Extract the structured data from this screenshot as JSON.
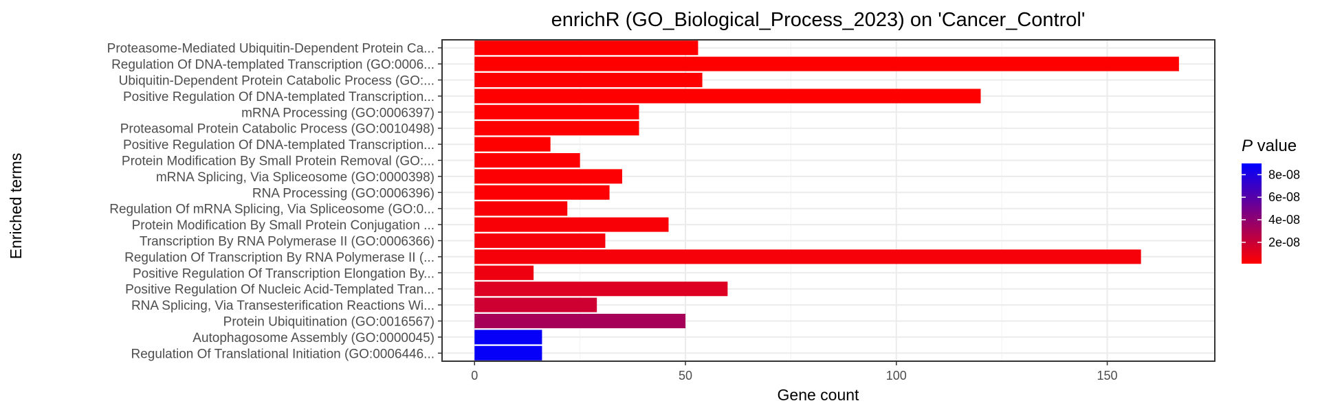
{
  "chart_data": {
    "type": "bar",
    "orientation": "horizontal",
    "title": "enrichR (GO_Biological_Process_2023) on 'Cancer_Control'",
    "xlabel": "Gene count",
    "ylabel": "Enriched terms",
    "xlim": [
      -7.7,
      175.5
    ],
    "xticks": [
      0,
      50,
      100,
      150
    ],
    "xtick_labels": [
      "0",
      "50",
      "100",
      "150"
    ],
    "grid": true,
    "legend": {
      "title_italic": "P",
      "title_rest": " value",
      "placement": "right",
      "min": 1e-09,
      "max": 9e-08,
      "color_low": "#ff0000",
      "color_high": "#0000ff",
      "breaks": [
        2e-08,
        4e-08,
        6e-08,
        8e-08
      ],
      "break_labels": [
        "2e-08",
        "4e-08",
        "6e-08",
        "8e-08"
      ]
    },
    "categories": [
      "Proteasome-Mediated Ubiquitin-Dependent Protein Ca...",
      "Regulation Of DNA-templated Transcription (GO:0006...",
      "Ubiquitin-Dependent Protein Catabolic Process (GO:...",
      "Positive Regulation Of DNA-templated Transcription...",
      "mRNA Processing (GO:0006397)",
      "Proteasomal Protein Catabolic Process (GO:0010498)",
      "Positive Regulation Of DNA-templated Transcription...",
      "Protein Modification By Small Protein Removal (GO:...",
      "mRNA Splicing, Via Spliceosome (GO:0000398)",
      "RNA Processing (GO:0006396)",
      "Regulation Of mRNA Splicing, Via Spliceosome (GO:0...",
      "Protein Modification By Small Protein Conjugation ...",
      "Transcription By RNA Polymerase II (GO:0006366)",
      "Regulation Of Transcription By RNA Polymerase II (...",
      "Positive Regulation Of Transcription Elongation By...",
      "Positive Regulation Of Nucleic Acid-Templated Tran...",
      "RNA Splicing, Via Transesterification Reactions Wi...",
      "Protein Ubiquitination (GO:0016567)",
      "Autophagosome Assembly (GO:0000045)",
      "Regulation Of Translational Initiation (GO:0006446..."
    ],
    "values": [
      53,
      167,
      54,
      120,
      39,
      39,
      18,
      25,
      35,
      32,
      22,
      46,
      31,
      158,
      14,
      60,
      29,
      50,
      16,
      16
    ],
    "p_values": [
      1e-09,
      1e-09,
      1e-09,
      1e-09,
      1e-09,
      1e-09,
      1e-09,
      2e-09,
      2e-09,
      2e-09,
      3e-09,
      3e-09,
      4e-09,
      4e-09,
      7e-09,
      1.3e-08,
      1.8e-08,
      3.2e-08,
      8.8e-08,
      8.8e-08
    ]
  }
}
